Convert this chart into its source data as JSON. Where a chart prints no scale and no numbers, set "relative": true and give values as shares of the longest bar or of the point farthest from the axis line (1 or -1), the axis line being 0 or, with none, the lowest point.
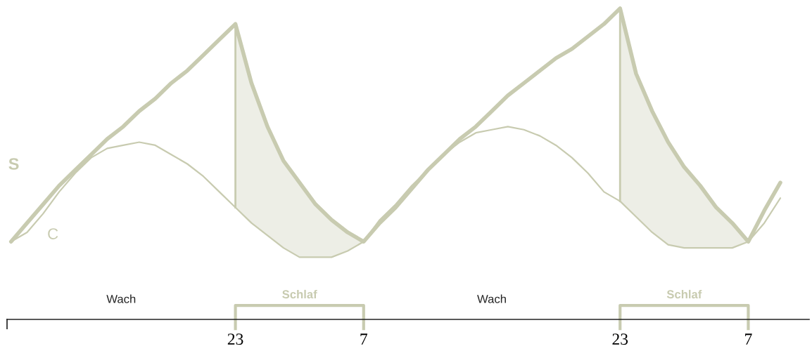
{
  "chart_data": {
    "type": "line",
    "relative": true,
    "categories": [
      null,
      null,
      null,
      null,
      null,
      null,
      null,
      null,
      null,
      null,
      null,
      null,
      null,
      null,
      "23",
      null,
      null,
      null,
      null,
      null,
      null,
      null,
      "7",
      null,
      null,
      null,
      null,
      null,
      null,
      null,
      null,
      null,
      null,
      null,
      null,
      null,
      null,
      null,
      "23",
      null,
      null,
      null,
      null,
      null,
      null,
      null,
      "7",
      null,
      null
    ],
    "series": [
      {
        "name": "S",
        "color": "#c8cbb0",
        "values": [
          0.25,
          0.31,
          0.37,
          0.43,
          0.48,
          0.53,
          0.58,
          0.62,
          0.67,
          0.71,
          0.76,
          0.8,
          0.85,
          0.9,
          0.95,
          0.76,
          0.62,
          0.51,
          0.44,
          0.37,
          0.32,
          0.28,
          0.25,
          0.31,
          0.36,
          0.42,
          0.48,
          0.53,
          0.58,
          0.62,
          0.67,
          0.72,
          0.76,
          0.8,
          0.84,
          0.87,
          0.91,
          0.95,
          1,
          0.79,
          0.67,
          0.57,
          0.49,
          0.43,
          0.36,
          0.31,
          0.25,
          0.35,
          0.44
        ],
        "lower": [
          null,
          null,
          null,
          null,
          null,
          null,
          null,
          null,
          null,
          null,
          null,
          null,
          null,
          null,
          0.36,
          0.31,
          0.27,
          0.23,
          0.2,
          0.2,
          0.2,
          0.22,
          0.25,
          null,
          null,
          null,
          null,
          null,
          null,
          null,
          null,
          null,
          null,
          null,
          null,
          null,
          null,
          null,
          0.38,
          0.33,
          0.28,
          0.24,
          0.23,
          0.23,
          0.23,
          0.23,
          0.25,
          null,
          null
        ],
        "upper": [
          null,
          null,
          null,
          null,
          null,
          null,
          null,
          null,
          null,
          null,
          null,
          null,
          null,
          null,
          0.95,
          0.76,
          0.62,
          0.51,
          0.44,
          0.37,
          0.32,
          0.28,
          0.25,
          null,
          null,
          null,
          null,
          null,
          null,
          null,
          null,
          null,
          null,
          null,
          null,
          null,
          null,
          null,
          1,
          0.79,
          0.67,
          0.57,
          0.49,
          0.43,
          0.36,
          0.31,
          0.25,
          null,
          null
        ]
      },
      {
        "name": "C",
        "color": "#c8cbb0",
        "values": [
          0.25,
          0.28,
          0.34,
          0.41,
          0.47,
          0.52,
          0.55,
          0.56,
          0.57,
          0.56,
          0.53,
          0.5,
          0.46,
          0.41,
          0.36,
          0.31,
          0.27,
          0.23,
          0.2,
          0.2,
          0.2,
          0.22,
          0.25,
          0.32,
          0.37,
          0.43,
          0.48,
          0.53,
          0.57,
          0.6,
          0.61,
          0.62,
          0.61,
          0.59,
          0.56,
          0.52,
          0.47,
          0.41,
          0.38,
          0.33,
          0.28,
          0.24,
          0.23,
          0.23,
          0.23,
          0.23,
          0.25,
          0.31,
          0.39
        ]
      }
    ],
    "annotations": [
      "Wach",
      "Schlaf",
      "Wach",
      "Schlaf"
    ],
    "line_style": "solid",
    "grid": false,
    "legend": false
  }
}
